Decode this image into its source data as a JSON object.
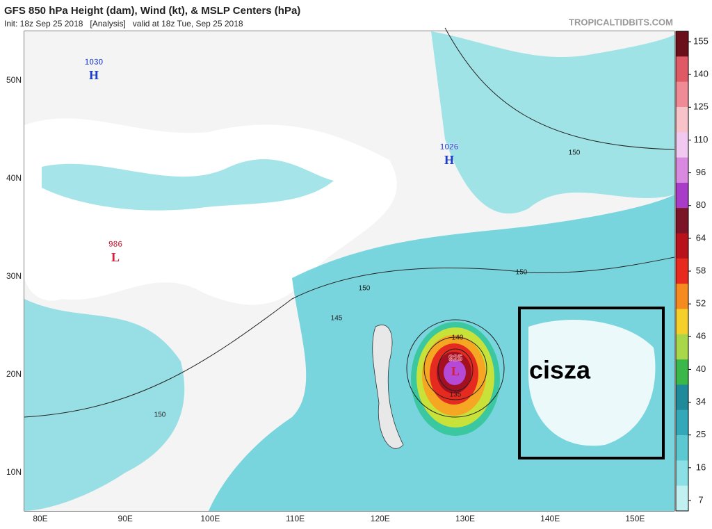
{
  "header": {
    "title": "GFS 850 hPa Height (dam), Wind (kt), & MSLP Centers (hPa)",
    "subtitle": "Init: 18z Sep 25 2018   [Analysis]   valid at 18z Tue, Sep 25 2018",
    "site": "TROPICALTIDBITS.COM"
  },
  "map": {
    "lat_labels": [
      "50N",
      "40N",
      "30N",
      "20N",
      "10N"
    ],
    "lon_labels": [
      "80E",
      "90E",
      "100E",
      "110E",
      "120E",
      "130E",
      "140E",
      "150E"
    ],
    "centers": [
      {
        "value": "1030",
        "letter": "H"
      },
      {
        "value": "1026",
        "letter": "H"
      },
      {
        "value": "986",
        "letter": "L"
      },
      {
        "value": "925",
        "letter": "L"
      }
    ],
    "contour_labels": [
      "150",
      "150",
      "150",
      "150",
      "145",
      "140",
      "135"
    ],
    "annotation": "cisza"
  },
  "colorbar": {
    "labels": [
      "155",
      "140",
      "125",
      "110",
      "96",
      "80",
      "64",
      "58",
      "52",
      "46",
      "40",
      "34",
      "25",
      "16",
      "7"
    ]
  }
}
